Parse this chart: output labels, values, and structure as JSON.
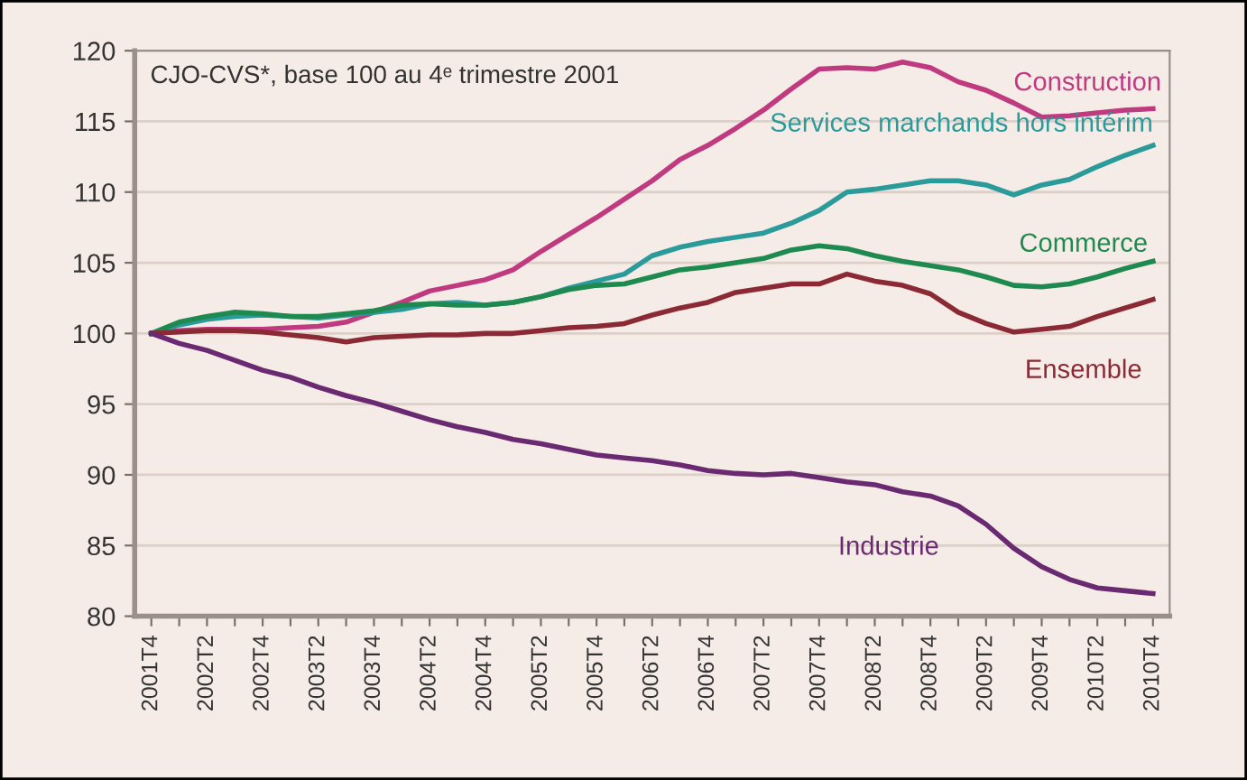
{
  "chart_data": {
    "type": "line",
    "annotations": [
      "CJO-CVS*, base 100 au 4ᵉ trimestre 2001"
    ],
    "categories": [
      "2001T4",
      null,
      "2002T2",
      null,
      "2002T4",
      null,
      "2003T2",
      null,
      "2003T4",
      null,
      "2004T2",
      null,
      "2004T4",
      null,
      "2005T2",
      null,
      "2005T4",
      null,
      "2006T2",
      null,
      "2006T4",
      null,
      "2007T2",
      null,
      "2007T4",
      null,
      "2008T2",
      null,
      "2008T4",
      null,
      "2009T2",
      null,
      "2009T4",
      null,
      "2010T2",
      null,
      "2010T4"
    ],
    "series": [
      {
        "name": "Construction",
        "color": "#c03a80",
        "values": [
          100,
          100.2,
          100.3,
          100.3,
          100.3,
          100.4,
          100.5,
          100.8,
          101.5,
          102.2,
          103,
          103.4,
          103.8,
          104.5,
          105.8,
          107,
          108.2,
          109.5,
          110.8,
          112.3,
          113.3,
          114.5,
          115.8,
          117.3,
          118.7,
          118.8,
          118.7,
          119.2,
          118.8,
          117.8,
          117.2,
          116.3,
          115.3,
          115.4,
          115.6,
          115.8,
          115.9
        ]
      },
      {
        "name": "Services marchands hors intérim",
        "color": "#2a9a9a",
        "values": [
          100,
          100.6,
          101,
          101.2,
          101.3,
          101.2,
          101.1,
          101.3,
          101.5,
          101.7,
          102.1,
          102.2,
          102,
          102.2,
          102.6,
          103.2,
          103.7,
          104.2,
          105.5,
          106.1,
          106.5,
          106.8,
          107.1,
          107.8,
          108.7,
          110,
          110.2,
          110.5,
          110.8,
          110.8,
          110.5,
          109.8,
          110.5,
          110.9,
          111.8,
          112.6,
          113.3
        ]
      },
      {
        "name": "Commerce",
        "color": "#1f8a50",
        "values": [
          100,
          100.8,
          101.2,
          101.5,
          101.4,
          101.2,
          101.2,
          101.4,
          101.6,
          102,
          102.1,
          102,
          102,
          102.2,
          102.6,
          103.1,
          103.4,
          103.5,
          104,
          104.5,
          104.7,
          105,
          105.3,
          105.9,
          106.2,
          106,
          105.5,
          105.1,
          104.8,
          104.5,
          104,
          103.4,
          103.3,
          103.5,
          104,
          104.6,
          105.1
        ]
      },
      {
        "name": "Ensemble",
        "color": "#8b2a35",
        "values": [
          100,
          100.1,
          100.2,
          100.2,
          100.1,
          99.9,
          99.7,
          99.4,
          99.7,
          99.8,
          99.9,
          99.9,
          100,
          100,
          100.2,
          100.4,
          100.5,
          100.7,
          101.3,
          101.8,
          102.2,
          102.9,
          103.2,
          103.5,
          103.5,
          104.2,
          103.7,
          103.4,
          102.8,
          101.5,
          100.7,
          100.1,
          100.3,
          100.5,
          101.2,
          101.8,
          102.4
        ]
      },
      {
        "name": "Industrie",
        "color": "#6a2a72",
        "values": [
          100,
          99.3,
          98.8,
          98.1,
          97.4,
          96.9,
          96.2,
          95.6,
          95.1,
          94.5,
          93.9,
          93.4,
          93,
          92.5,
          92.2,
          91.8,
          91.4,
          91.2,
          91,
          90.7,
          90.3,
          90.1,
          90,
          90.1,
          89.8,
          89.5,
          89.3,
          88.8,
          88.5,
          87.8,
          86.5,
          84.8,
          83.5,
          82.6,
          82,
          81.8,
          81.6
        ]
      }
    ],
    "ylim": [
      80,
      120
    ],
    "yticks": [
      80,
      85,
      90,
      95,
      100,
      105,
      110,
      115,
      120
    ],
    "grid": "y",
    "legend": false
  }
}
